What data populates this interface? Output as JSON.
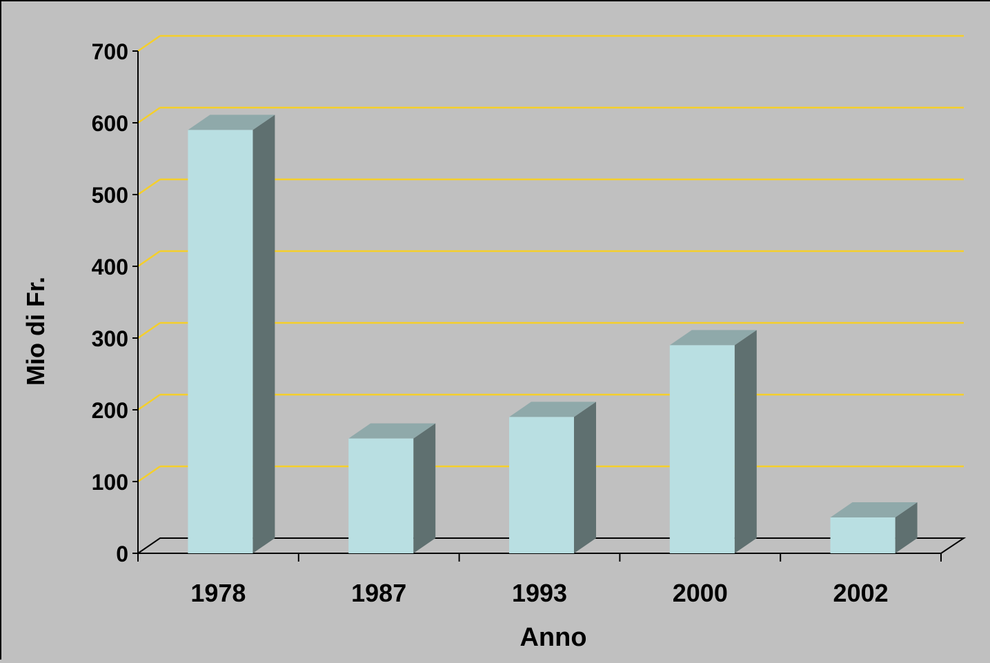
{
  "chart_data": {
    "type": "bar",
    "title": "",
    "xlabel": "Anno",
    "ylabel": "Mio di Fr.",
    "categories": [
      "1978",
      "1987",
      "1993",
      "2000",
      "2002"
    ],
    "values": [
      590,
      160,
      190,
      290,
      50
    ],
    "ylim": [
      0,
      700
    ],
    "yticks": [
      0,
      100,
      200,
      300,
      400,
      500,
      600,
      700
    ],
    "grid": true,
    "three_d": true,
    "colors": {
      "background": "#c0c0c0",
      "gridline": "#f5cf2a",
      "bar_front": "#b9dfe2",
      "bar_top": "#8fa9aa",
      "bar_side": "#5f7070",
      "axis": "#000000"
    }
  }
}
